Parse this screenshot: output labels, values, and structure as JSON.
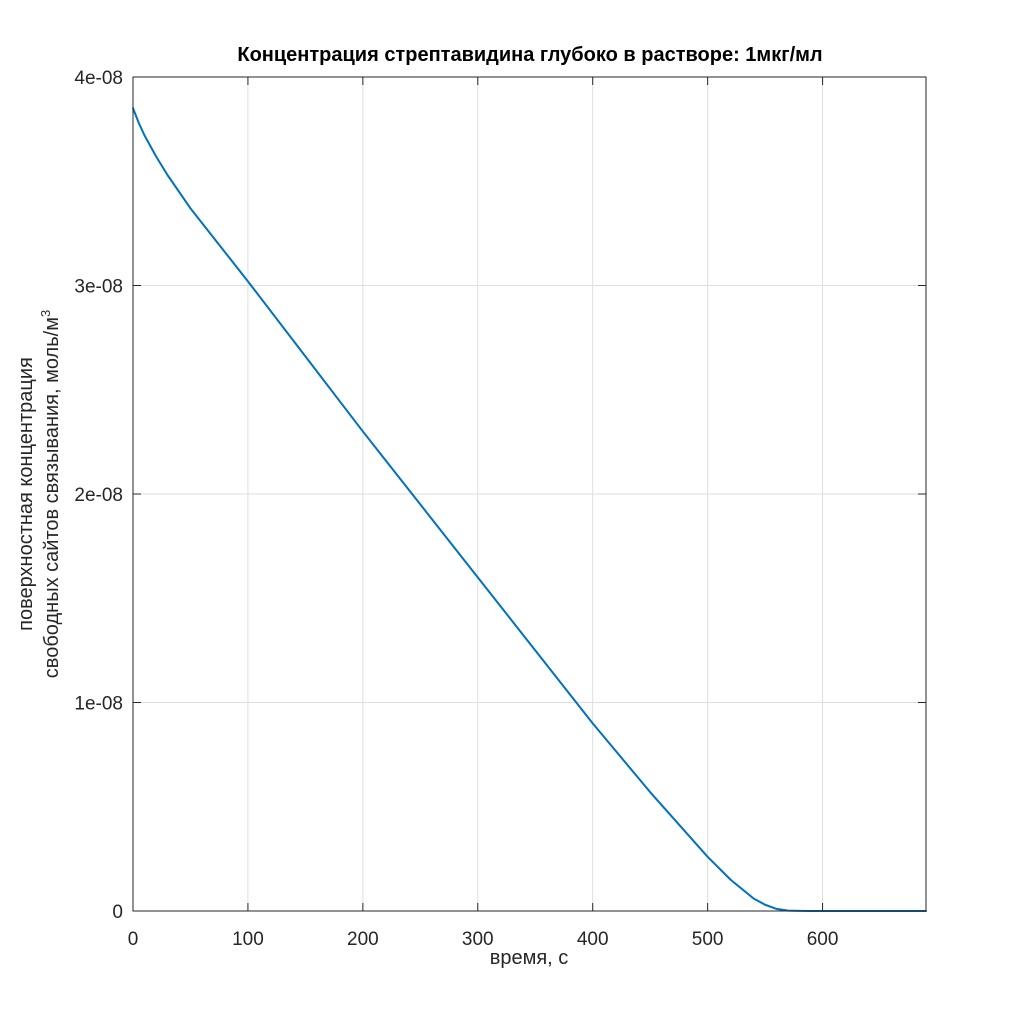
{
  "chart_data": {
    "type": "line",
    "title": "Концентрация стрептавидина глубоко в растворе: 1мкг/мл",
    "xlabel": "время, с",
    "ylabel_line1": "поверхностная концентрация",
    "ylabel_line2": "свободных сайтов связывания, моль/м",
    "ylabel_superscript": "3",
    "xlim": [
      0,
      690
    ],
    "ylim": [
      0,
      4e-08
    ],
    "x_ticks": [
      0,
      100,
      200,
      300,
      400,
      500,
      600
    ],
    "x_tick_labels": [
      "0",
      "100",
      "200",
      "300",
      "400",
      "500",
      "600"
    ],
    "y_ticks": [
      0,
      1e-08,
      2e-08,
      3e-08,
      4e-08
    ],
    "y_tick_labels": [
      "0",
      "1e-08",
      "2e-08",
      "3e-08",
      "4e-08"
    ],
    "grid": true,
    "series": [
      {
        "color": "#0072bd",
        "x": [
          0,
          5,
          10,
          20,
          30,
          50,
          100,
          150,
          200,
          250,
          300,
          350,
          400,
          450,
          500,
          520,
          540,
          550,
          560,
          570,
          580,
          590,
          600,
          650,
          690
        ],
        "y": [
          3.85e-08,
          3.78e-08,
          3.72e-08,
          3.62e-08,
          3.53e-08,
          3.37e-08,
          3.02e-08,
          2.66e-08,
          2.3e-08,
          1.95e-08,
          1.6e-08,
          1.25e-08,
          9e-09,
          5.7e-09,
          2.6e-09,
          1.5e-09,
          6e-10,
          3e-10,
          1e-10,
          2e-11,
          5e-12,
          0,
          0,
          0,
          0
        ]
      }
    ]
  }
}
